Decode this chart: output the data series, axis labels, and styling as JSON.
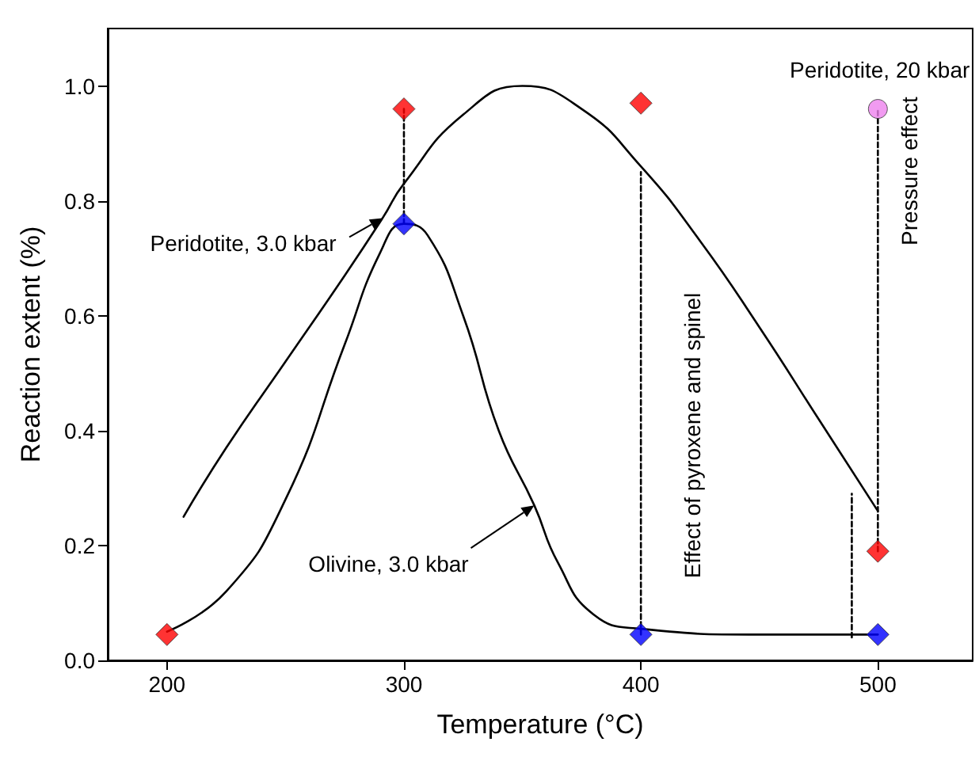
{
  "chart_data": {
    "type": "scatter",
    "xlabel": "Temperature (°C)",
    "ylabel": "Reaction extent (%)",
    "xlim": [
      175,
      540
    ],
    "xticks": [
      200,
      300,
      400,
      500
    ],
    "ylim": [
      0,
      1.1
    ],
    "yticks": [
      {
        "value": 0,
        "label": "0.0"
      },
      {
        "value": 0.2,
        "label": "0.2"
      },
      {
        "value": 0.4,
        "label": "0.4"
      },
      {
        "value": 0.6,
        "label": "0.6"
      },
      {
        "value": 0.8,
        "label": "0.8"
      },
      {
        "value": 1,
        "label": "1.0"
      }
    ],
    "grid": false,
    "series": [
      {
        "type": "line",
        "color": "#000000",
        "marker": "none",
        "line_style": "solid",
        "x": [
          207,
          225,
          250,
          275,
          291,
          300,
          325,
          350,
          375,
          400,
          425,
          450,
          475,
          500
        ],
        "values": [
          0.25,
          0.37,
          0.52,
          0.67,
          0.77,
          0.83,
          0.95,
          1.0,
          0.96,
          0.86,
          0.73,
          0.58,
          0.42,
          0.26
        ]
      },
      {
        "type": "line",
        "color": "#000000",
        "marker": "none",
        "line_style": "solid",
        "x": [
          200,
          225,
          250,
          275,
          290,
          300,
          310,
          325,
          340,
          355,
          365,
          380,
          400,
          450,
          500
        ],
        "values": [
          0.05,
          0.12,
          0.28,
          0.55,
          0.71,
          0.76,
          0.74,
          0.6,
          0.4,
          0.27,
          0.17,
          0.08,
          0.055,
          0.045,
          0.045
        ]
      },
      {
        "type": "line",
        "color": "#000000",
        "marker": "none",
        "line_style": "dashed",
        "x": [
          300,
          300
        ],
        "values": [
          0.76,
          0.96
        ]
      },
      {
        "type": "line",
        "color": "#000000",
        "marker": "none",
        "line_style": "dashed",
        "x": [
          400,
          400
        ],
        "values": [
          0.045,
          0.85
        ]
      },
      {
        "type": "line",
        "color": "#000000",
        "marker": "none",
        "line_style": "dashed",
        "x": [
          489,
          489
        ],
        "values": [
          0.04,
          0.29
        ]
      },
      {
        "type": "line",
        "color": "#000000",
        "marker": "none",
        "line_style": "dashed",
        "x": [
          500,
          500
        ],
        "values": [
          0.19,
          0.96
        ]
      },
      {
        "color": "#ff0000",
        "marker": "diamond",
        "x": [
          200,
          300,
          400,
          500
        ],
        "values": [
          0.045,
          0.96,
          0.97,
          0.19
        ]
      },
      {
        "color": "#0000ff",
        "marker": "diamond",
        "x": [
          300,
          400,
          500
        ],
        "values": [
          0.76,
          0.045,
          0.045
        ]
      },
      {
        "color": "#ee82ee",
        "marker": "circle",
        "x": [
          500
        ],
        "values": [
          0.96
        ]
      }
    ],
    "annotations": [
      {
        "text": "Peridotite, 3.0 kbar",
        "x": 291,
        "y": 0.77
      },
      {
        "text": "Olivine, 3.0 kbar",
        "x": 355,
        "y": 0.27
      },
      "Effect of pyroxene and spinel",
      "Pressure effect",
      {
        "text": "Peridotite, 20 kbar",
        "x": 500,
        "y": 0.96
      }
    ]
  }
}
